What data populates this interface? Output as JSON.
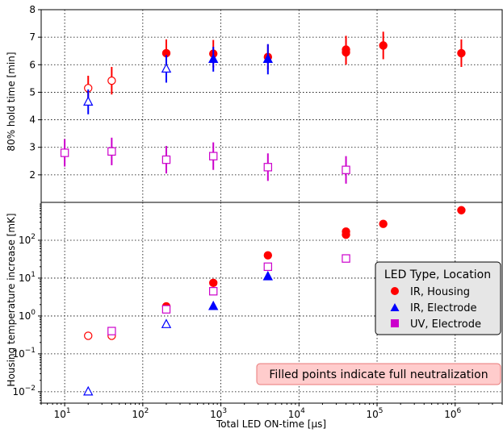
{
  "chart_data": [
    {
      "type": "scatter",
      "panel": "top",
      "ylabel": "80% hold time [min]",
      "xlabel": "",
      "xscale": "log",
      "xlim": [
        5,
        4000000
      ],
      "ylim": [
        1.0,
        8.0
      ],
      "ytick_values": [
        2,
        3,
        4,
        5,
        6,
        7,
        8
      ],
      "ytick_labels": [
        "2",
        "3",
        "4",
        "5",
        "6",
        "7",
        "8"
      ],
      "grid": true,
      "series": [
        {
          "name": "IR, Housing",
          "color": "#ff0000",
          "marker": "circle",
          "points": [
            {
              "x": 20,
              "y": 5.15,
              "err": 0.45,
              "filled": false
            },
            {
              "x": 40,
              "y": 5.42,
              "err": 0.5,
              "filled": false
            },
            {
              "x": 200,
              "y": 6.42,
              "err": 0.5,
              "filled": true
            },
            {
              "x": 800,
              "y": 6.4,
              "err": 0.5,
              "filled": true
            },
            {
              "x": 4000,
              "y": 6.28,
              "err": 0.45,
              "filled": true
            },
            {
              "x": 40000,
              "y": 6.55,
              "err": 0.5,
              "filled": true
            },
            {
              "x": 40000,
              "y": 6.45,
              "err": 0.45,
              "filled": true
            },
            {
              "x": 120000,
              "y": 6.7,
              "err": 0.5,
              "filled": true
            },
            {
              "x": 1200000,
              "y": 6.42,
              "err": 0.5,
              "filled": true
            }
          ]
        },
        {
          "name": "IR, Electrode",
          "color": "#0000ff",
          "marker": "triangle",
          "points": [
            {
              "x": 20,
              "y": 4.65,
              "err": 0.45,
              "filled": false
            },
            {
              "x": 200,
              "y": 5.85,
              "err": 0.5,
              "filled": false
            },
            {
              "x": 800,
              "y": 6.2,
              "err": 0.45,
              "filled": true
            },
            {
              "x": 4000,
              "y": 6.2,
              "err": 0.55,
              "filled": true
            }
          ]
        },
        {
          "name": "UV, Electrode",
          "color": "#cc00cc",
          "marker": "square",
          "points": [
            {
              "x": 10,
              "y": 2.8,
              "err": 0.5,
              "filled": false
            },
            {
              "x": 40,
              "y": 2.85,
              "err": 0.5,
              "filled": false
            },
            {
              "x": 200,
              "y": 2.55,
              "err": 0.5,
              "filled": false
            },
            {
              "x": 800,
              "y": 2.68,
              "err": 0.5,
              "filled": false
            },
            {
              "x": 4000,
              "y": 2.28,
              "err": 0.5,
              "filled": false
            },
            {
              "x": 40000,
              "y": 2.18,
              "err": 0.5,
              "filled": false
            }
          ]
        }
      ]
    },
    {
      "type": "scatter",
      "panel": "bottom",
      "ylabel": "Housing temperature increase [mK]",
      "xlabel": "Total LED ON-time [μs]",
      "xscale": "log",
      "yscale": "log",
      "xlim": [
        5,
        4000000
      ],
      "ylim": [
        0.005,
        1000
      ],
      "grid": true,
      "legend": {
        "title": "LED Type, Location",
        "entries": [
          "IR, Housing",
          "IR, Electrode",
          "UV, Electrode"
        ],
        "placement": "center-right"
      },
      "annotation": "Filled points indicate full neutralization",
      "series": [
        {
          "name": "IR, Housing",
          "color": "#ff0000",
          "marker": "circle",
          "points": [
            {
              "x": 20,
              "y": 0.3,
              "filled": false
            },
            {
              "x": 40,
              "y": 0.3,
              "filled": false
            },
            {
              "x": 200,
              "y": 1.8,
              "filled": true
            },
            {
              "x": 800,
              "y": 7.5,
              "filled": true
            },
            {
              "x": 4000,
              "y": 40,
              "filled": true
            },
            {
              "x": 40000,
              "y": 140,
              "filled": true
            },
            {
              "x": 40000,
              "y": 170,
              "filled": true
            },
            {
              "x": 120000,
              "y": 270,
              "filled": true
            },
            {
              "x": 1200000,
              "y": 620,
              "filled": true
            }
          ]
        },
        {
          "name": "IR, Electrode",
          "color": "#0000ff",
          "marker": "triangle",
          "points": [
            {
              "x": 20,
              "y": 0.01,
              "filled": false
            },
            {
              "x": 200,
              "y": 0.6,
              "filled": false
            },
            {
              "x": 800,
              "y": 1.8,
              "filled": true
            },
            {
              "x": 4000,
              "y": 11,
              "filled": true
            }
          ]
        },
        {
          "name": "UV, Electrode",
          "color": "#cc00cc",
          "marker": "square",
          "points": [
            {
              "x": 40,
              "y": 0.4,
              "filled": false
            },
            {
              "x": 200,
              "y": 1.5,
              "filled": false
            },
            {
              "x": 800,
              "y": 4.5,
              "filled": false
            },
            {
              "x": 4000,
              "y": 20,
              "filled": false
            },
            {
              "x": 40000,
              "y": 33,
              "filled": false
            }
          ]
        }
      ]
    }
  ],
  "axes": {
    "x_ticks": [
      {
        "base": "10",
        "exp": "1"
      },
      {
        "base": "10",
        "exp": "2"
      },
      {
        "base": "10",
        "exp": "3"
      },
      {
        "base": "10",
        "exp": "4"
      },
      {
        "base": "10",
        "exp": "5"
      },
      {
        "base": "10",
        "exp": "6"
      }
    ],
    "bottom_y_ticks": [
      {
        "base": "10",
        "exp": "−2"
      },
      {
        "base": "10",
        "exp": "−1"
      },
      {
        "base": "10",
        "exp": "0"
      },
      {
        "base": "10",
        "exp": "1"
      },
      {
        "base": "10",
        "exp": "2"
      }
    ]
  }
}
